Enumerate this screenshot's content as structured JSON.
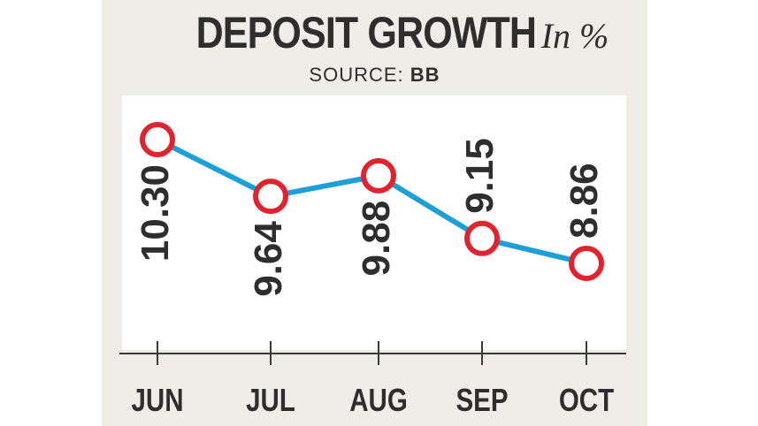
{
  "header": {
    "title": "DEPOSIT GROWTH",
    "unit": "In %",
    "source_prefix": "SOURCE:",
    "source_name": "BB"
  },
  "colors": {
    "line": "#1e9fd8",
    "marker_stroke": "#e0242f",
    "marker_fill": "#ffffff",
    "text": "#2e2e2e",
    "panel": "#efede8"
  },
  "chart_data": {
    "type": "line",
    "title": "DEPOSIT GROWTH In %",
    "source": "SOURCE: BB",
    "categories": [
      "JUN",
      "JUL",
      "AUG",
      "SEP",
      "OCT"
    ],
    "series": [
      {
        "name": "Deposit growth",
        "values": [
          10.3,
          9.64,
          9.88,
          9.15,
          8.86
        ]
      }
    ],
    "value_labels": [
      "10.30",
      "9.64",
      "9.88",
      "9.15",
      "8.86"
    ],
    "xlabel": "",
    "ylabel": "",
    "ylim": [
      8.2,
      10.7
    ],
    "grid": false,
    "legend": "none"
  }
}
